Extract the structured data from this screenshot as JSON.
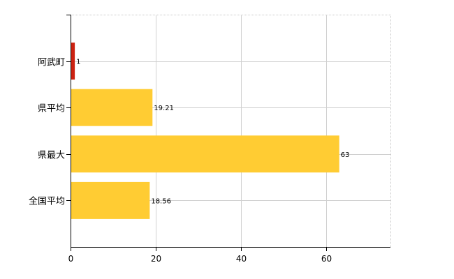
{
  "chart_data": {
    "type": "bar",
    "orientation": "horizontal",
    "categories": [
      "阿武町",
      "県平均",
      "県最大",
      "全国平均"
    ],
    "values": [
      1,
      19.21,
      63,
      18.56
    ],
    "value_labels": [
      "1",
      "19.21",
      "63",
      "18.56"
    ],
    "bar_colors": [
      "#cc2211",
      "#ffcc33",
      "#ffcc33",
      "#ffcc33"
    ],
    "xlim": [
      0,
      75
    ],
    "x_ticks": [
      0,
      20,
      40,
      60
    ],
    "x_tick_labels": [
      "0",
      "20",
      "40",
      "60"
    ],
    "grid": true,
    "title": "",
    "xlabel": "",
    "ylabel": ""
  }
}
